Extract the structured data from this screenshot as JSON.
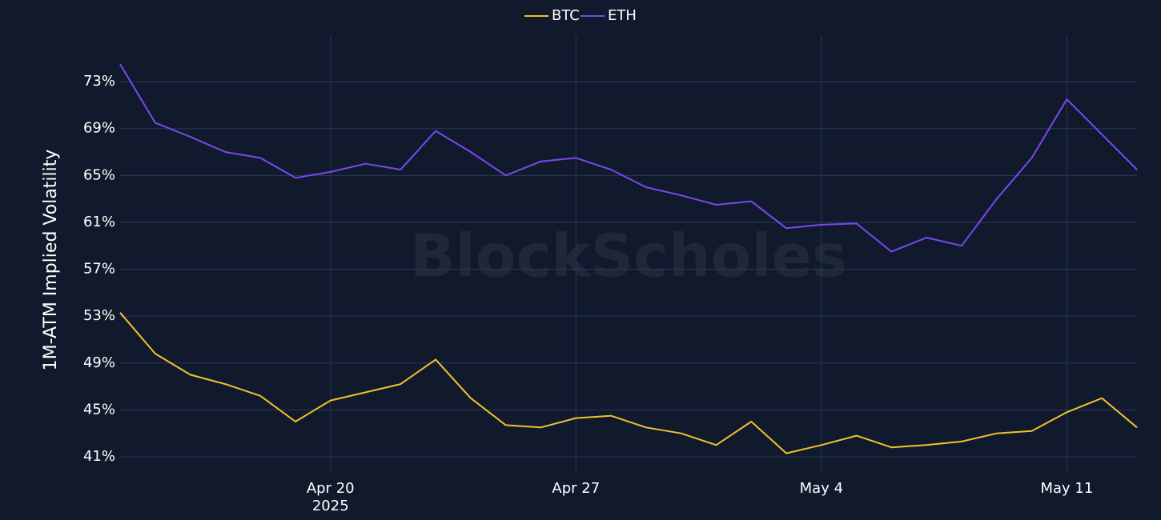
{
  "chart_data": {
    "type": "line",
    "y_label": "1M-ATM Implied Volatility",
    "watermark": "BlockScholes",
    "legend": "top-center",
    "grid": true,
    "x": [
      "2025-04-14",
      "2025-04-15",
      "2025-04-16",
      "2025-04-17",
      "2025-04-18",
      "2025-04-19",
      "2025-04-20",
      "2025-04-21",
      "2025-04-22",
      "2025-04-23",
      "2025-04-24",
      "2025-04-25",
      "2025-04-26",
      "2025-04-27",
      "2025-04-28",
      "2025-04-29",
      "2025-04-30",
      "2025-05-01",
      "2025-05-02",
      "2025-05-03",
      "2025-05-04",
      "2025-05-05",
      "2025-05-06",
      "2025-05-07",
      "2025-05-08",
      "2025-05-09",
      "2025-05-10",
      "2025-05-11",
      "2025-05-12",
      "2025-05-13"
    ],
    "xlim": [
      "2025-04-14",
      "2025-05-13"
    ],
    "xticks": [
      {
        "value": "2025-04-20",
        "label": "Apr 20\n2025"
      },
      {
        "value": "2025-04-27",
        "label": "Apr 27"
      },
      {
        "value": "2025-05-04",
        "label": "May 4"
      },
      {
        "value": "2025-05-11",
        "label": "May 11"
      }
    ],
    "ylim": [
      39.7,
      76.9
    ],
    "yticks": [
      {
        "value": 41,
        "label": "41%"
      },
      {
        "value": 45,
        "label": "45%"
      },
      {
        "value": 49,
        "label": "49%"
      },
      {
        "value": 53,
        "label": "53%"
      },
      {
        "value": 57,
        "label": "57%"
      },
      {
        "value": 61,
        "label": "61%"
      },
      {
        "value": 65,
        "label": "65%"
      },
      {
        "value": 69,
        "label": "69%"
      },
      {
        "value": 73,
        "label": "73%"
      }
    ],
    "series": [
      {
        "name": "BTC",
        "color": "#f2c12e",
        "values": [
          53.3,
          49.8,
          48,
          47.2,
          46.2,
          44,
          45.8,
          46.5,
          47.2,
          49.3,
          46,
          43.7,
          43.5,
          44.3,
          44.5,
          43.5,
          43,
          42,
          44,
          41.3,
          42,
          42.8,
          41.8,
          42,
          42.3,
          43,
          43.2,
          44.8,
          46,
          43.5
        ]
      },
      {
        "name": "ETH",
        "color": "#7c46f2",
        "values": [
          74.5,
          69.5,
          68.3,
          67,
          66.5,
          64.8,
          65.3,
          66,
          65.5,
          68.8,
          67,
          65,
          66.2,
          66.5,
          65.5,
          64,
          63.3,
          62.5,
          62.8,
          60.5,
          60.8,
          60.9,
          58.5,
          59.7,
          59,
          63,
          66.5,
          71.5,
          68.5,
          65.5
        ]
      }
    ]
  }
}
